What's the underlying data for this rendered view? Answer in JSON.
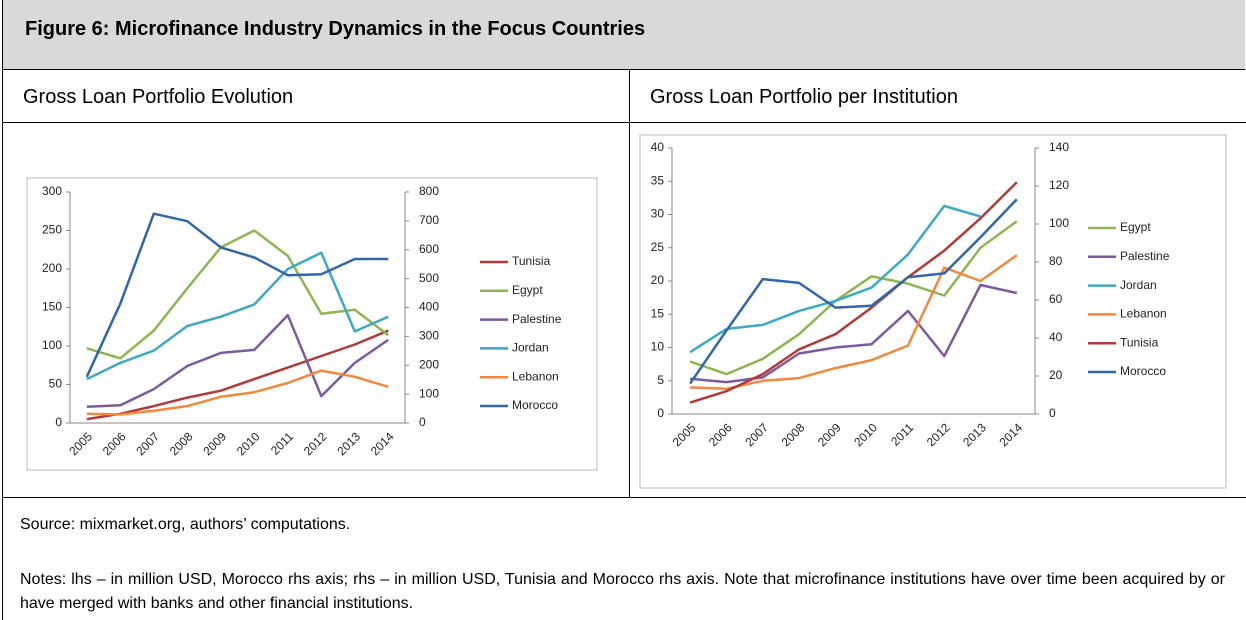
{
  "title": "Figure 6: Microfinance Industry Dynamics in the Focus Countries",
  "panels": [
    "Gross Loan Portfolio Evolution",
    "Gross Loan Portfolio per Institution"
  ],
  "source": "Source: mixmarket.org, authors’ computations.",
  "notes": "Notes: lhs – in million USD, Morocco rhs axis; rhs – in million USD, Tunisia and Morocco rhs axis. Note that microfinance institutions have over time been acquired by or have merged with banks and other financial institutions.",
  "chart_data": [
    {
      "type": "line",
      "legend": "right",
      "categories": [
        "2005",
        "2006",
        "2007",
        "2008",
        "2009",
        "2010",
        "2011",
        "2012",
        "2013",
        "2014"
      ],
      "ylim": [
        0,
        300
      ],
      "yticks": [
        0,
        50,
        100,
        150,
        200,
        250,
        300
      ],
      "y2lim": [
        0,
        800
      ],
      "y2ticks": [
        0,
        100,
        200,
        300,
        400,
        500,
        600,
        700,
        800
      ],
      "series": [
        {
          "name": "Tunisia",
          "color": "#b03a36",
          "values": [
            5,
            12,
            22,
            33,
            42,
            57,
            72,
            87,
            102,
            120
          ]
        },
        {
          "name": "Egypt",
          "color": "#8fb552",
          "values": [
            97,
            84,
            120,
            175,
            228,
            250,
            217,
            142,
            147,
            114
          ]
        },
        {
          "name": "Palestine",
          "color": "#7a5c9e",
          "values": [
            21,
            23,
            44,
            74,
            91,
            95,
            140,
            35,
            78,
            108
          ]
        },
        {
          "name": "Jordan",
          "color": "#3ea9c3",
          "values": [
            57,
            78,
            94,
            126,
            138,
            154,
            200,
            221,
            119,
            138
          ]
        },
        {
          "name": "Lebanon",
          "color": "#f0893e",
          "values": [
            12,
            11,
            16,
            22,
            34,
            40,
            52,
            68,
            60,
            47
          ]
        },
        {
          "name": "Morocco",
          "color": "#3366a8",
          "axis": "y2",
          "values": [
            160,
            413,
            725,
            699,
            608,
            573,
            512,
            515,
            568,
            568
          ]
        }
      ]
    },
    {
      "type": "line",
      "legend": "right",
      "categories": [
        "2005",
        "2006",
        "2007",
        "2008",
        "2009",
        "2010",
        "2011",
        "2012",
        "2013",
        "2014"
      ],
      "ylim": [
        0,
        40
      ],
      "yticks": [
        0,
        5,
        10,
        15,
        20,
        25,
        30,
        35,
        40
      ],
      "y2lim": [
        0,
        140
      ],
      "y2ticks": [
        0,
        20,
        40,
        60,
        80,
        100,
        120,
        140
      ],
      "series": [
        {
          "name": "Egypt",
          "color": "#8fb552",
          "values": [
            7.9,
            6,
            8.3,
            12,
            17,
            20.7,
            19.6,
            17.8,
            25,
            29
          ]
        },
        {
          "name": "Palestine",
          "color": "#7a5c9e",
          "values": [
            5.3,
            4.8,
            5.5,
            9.1,
            10,
            10.5,
            15.5,
            8.7,
            19.4,
            18.2
          ]
        },
        {
          "name": "Jordan",
          "color": "#3ea9c3",
          "values": [
            9.3,
            12.8,
            13.4,
            15.5,
            17,
            19,
            24,
            31.3,
            29.7,
            null
          ]
        },
        {
          "name": "Lebanon",
          "color": "#f0893e",
          "values": [
            4,
            3.8,
            5,
            5.4,
            6.9,
            8.1,
            10.3,
            22,
            20,
            23.9
          ]
        },
        {
          "name": "Tunisia",
          "color": "#b03a36",
          "axis": "y2",
          "values": [
            6,
            12,
            21,
            34,
            42,
            56,
            72,
            86,
            103,
            122
          ]
        },
        {
          "name": "Morocco",
          "color": "#3366a8",
          "axis": "y2",
          "values": [
            16,
            44,
            71,
            69,
            56,
            57,
            72,
            74,
            93,
            113
          ]
        }
      ]
    }
  ]
}
